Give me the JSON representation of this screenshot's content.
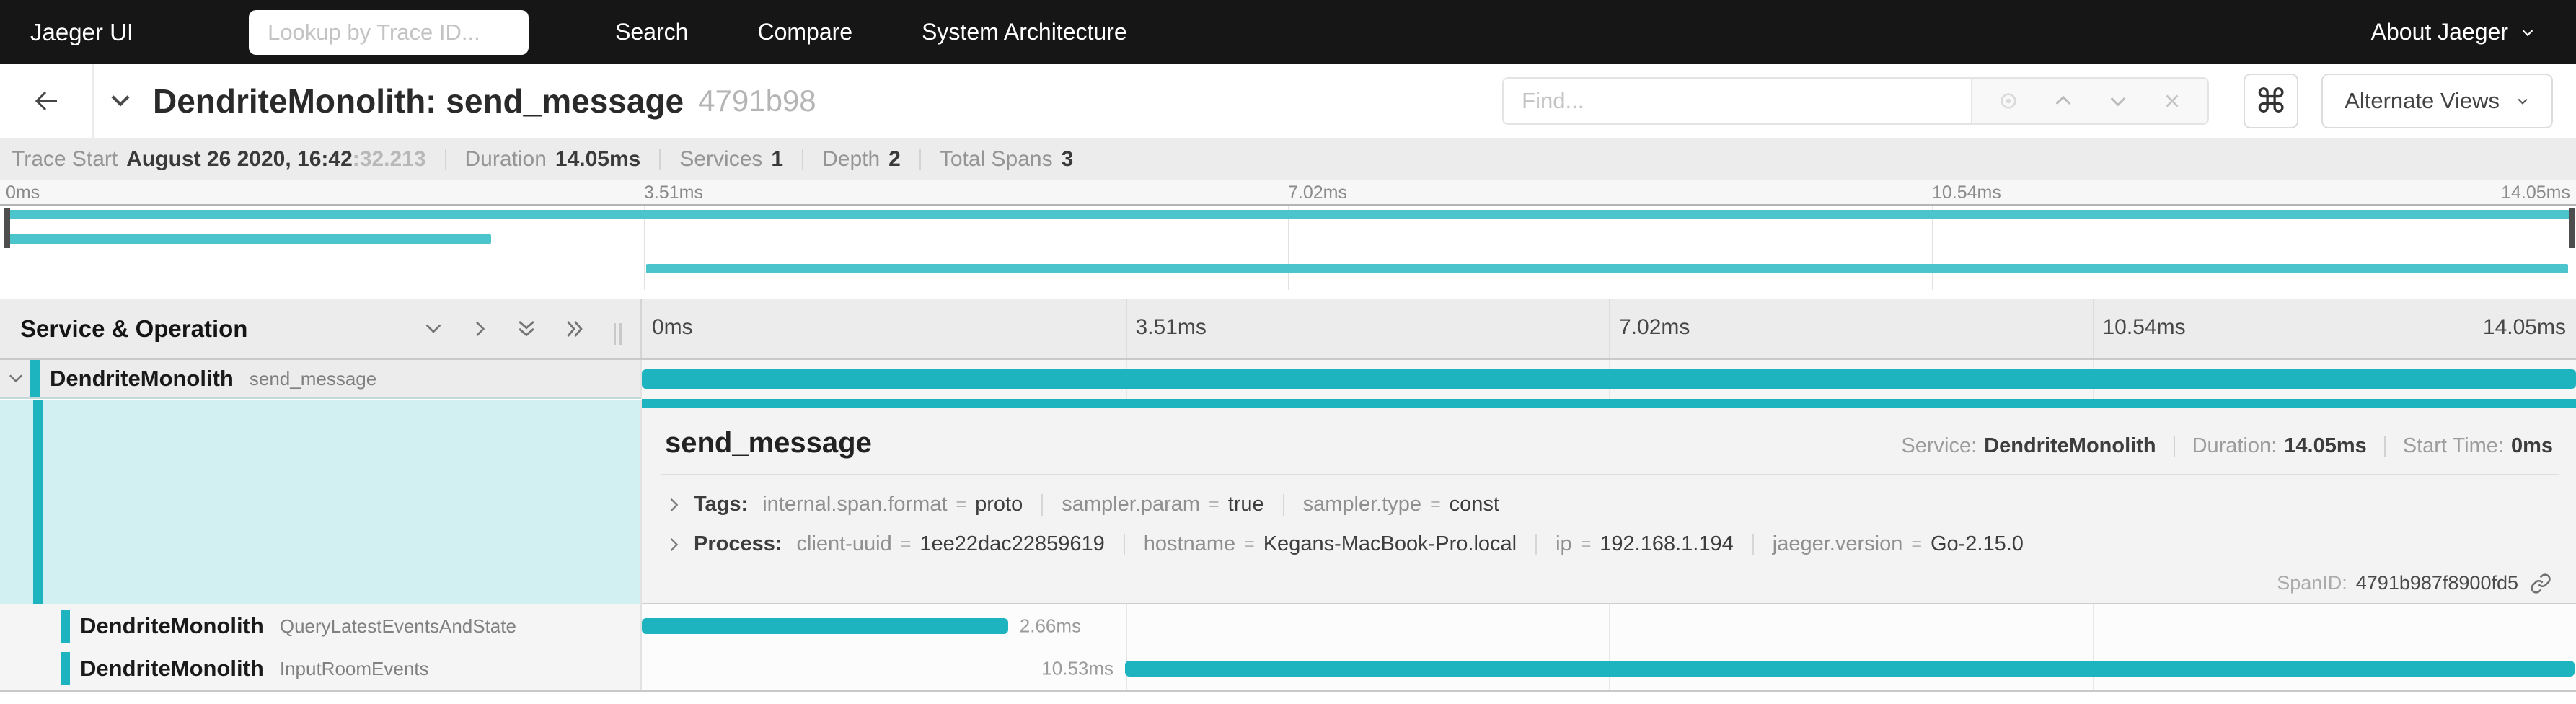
{
  "nav": {
    "brand": "Jaeger UI",
    "lookup_placeholder": "Lookup by Trace ID...",
    "links": [
      "Search",
      "Compare",
      "System Architecture"
    ],
    "about": "About Jaeger"
  },
  "titlebar": {
    "title": "DendriteMonolith: send_message",
    "trace_id_short": "4791b98",
    "find_placeholder": "Find...",
    "shortcut_glyph": "⌘",
    "alternate_views_label": "Alternate Views"
  },
  "trace_info": {
    "trace_start_label": "Trace Start",
    "trace_start_main": "August 26 2020, 16:42",
    "trace_start_fraction": ":32.213",
    "duration_label": "Duration",
    "duration_value": "14.05ms",
    "services_label": "Services",
    "services_value": "1",
    "depth_label": "Depth",
    "depth_value": "2",
    "total_spans_label": "Total Spans",
    "total_spans_value": "3"
  },
  "trace": {
    "duration_ms": 14.05
  },
  "timeline": {
    "column_header": "Service & Operation",
    "ticks": [
      "0ms",
      "3.51ms",
      "7.02ms",
      "10.54ms",
      "14.05ms"
    ]
  },
  "spans": [
    {
      "service": "DendriteMonolith",
      "operation": "send_message",
      "start_ms": 0,
      "duration_ms": 14.05,
      "selected": true
    },
    {
      "service": "DendriteMonolith",
      "operation": "QueryLatestEventsAndState",
      "start_ms": 0,
      "duration_ms": 2.66,
      "duration_label": "2.66ms",
      "label_side": "right"
    },
    {
      "service": "DendriteMonolith",
      "operation": "InputRoomEvents",
      "start_ms": 3.51,
      "duration_ms": 10.53,
      "duration_label": "10.53ms",
      "label_side": "left"
    }
  ],
  "detail": {
    "title": "send_message",
    "service_label": "Service:",
    "service_value": "DendriteMonolith",
    "duration_label": "Duration:",
    "duration_value": "14.05ms",
    "start_label": "Start Time:",
    "start_value": "0ms",
    "tags_label": "Tags:",
    "kv_separator": "=",
    "tags": [
      {
        "key": "internal.span.format",
        "value": "proto"
      },
      {
        "key": "sampler.param",
        "value": "true"
      },
      {
        "key": "sampler.type",
        "value": "const"
      }
    ],
    "process_label": "Process:",
    "process": [
      {
        "key": "client-uuid",
        "value": "1ee22dac22859619"
      },
      {
        "key": "hostname",
        "value": "Kegans-MacBook-Pro.local"
      },
      {
        "key": "ip",
        "value": "192.168.1.194"
      },
      {
        "key": "jaeger.version",
        "value": "Go-2.15.0"
      }
    ],
    "span_id_label": "SpanID:",
    "span_id_value": "4791b987f8900fd5"
  },
  "colors": {
    "nav_bg": "#161616",
    "span_bar_teal": "#1db4bf",
    "minimap_bar_teal": "#4cc4cc",
    "selected_detail_cyan": "#d2eff2",
    "header_gray": "#ececec"
  },
  "icons": {
    "back": "arrow-left",
    "title_collapse": "chevron-down",
    "find_locate": "crosshair",
    "find_prev": "chevron-up",
    "find_next": "chevron-down",
    "find_clear": "x",
    "keyboard_shortcut": "command ⌘",
    "alternate_views_caret": "chevron-down",
    "about_caret": "chevron-down",
    "collapse_one": "chevron-down",
    "expand_one": "chevron-right",
    "collapse_all": "double-chevron-down",
    "expand_all": "double-chevron-right",
    "span_link": "link"
  }
}
